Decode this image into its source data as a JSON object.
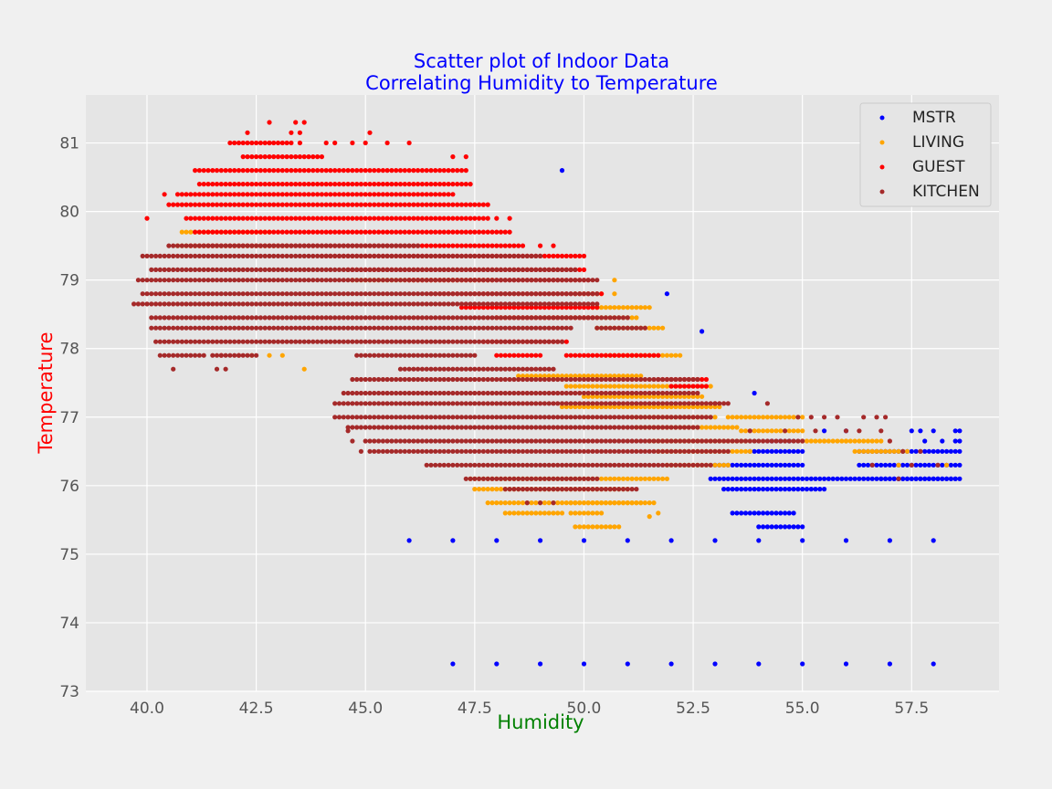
{
  "chart_data": {
    "type": "scatter",
    "title_line1": "Scatter plot of Indoor Data",
    "title_line2": "Correlating Humidity to Temperature",
    "xlabel": "Humidity",
    "ylabel": "Temperature",
    "xlim": [
      38.6,
      59.5
    ],
    "ylim": [
      73.0,
      81.7
    ],
    "x_ticks": [
      "40.0",
      "42.5",
      "45.0",
      "47.5",
      "50.0",
      "52.5",
      "55.0",
      "57.5"
    ],
    "y_ticks": [
      "73",
      "74",
      "75",
      "76",
      "77",
      "78",
      "79",
      "80",
      "81"
    ],
    "grid": true,
    "legend_position": "top-right",
    "colors": {
      "background": "#f0f0f0",
      "plot_area": "#e5e5e5",
      "grid": "#ffffff",
      "title": "#0000ff",
      "xlabel": "#008000",
      "ylabel": "#ff0000"
    },
    "series": [
      {
        "name": "MSTR",
        "color": "#0000ff",
        "bands": [
          [
            52.9,
            58.6,
            76.1
          ],
          [
            53.2,
            55.5,
            75.95
          ],
          [
            53.4,
            54.8,
            75.6
          ],
          [
            54.0,
            55.0,
            75.4
          ],
          [
            53.0,
            55.0,
            76.3
          ],
          [
            53.8,
            55.0,
            76.5
          ],
          [
            56.3,
            58.6,
            76.3
          ],
          [
            56.3,
            58.6,
            76.5
          ],
          [
            56.8,
            58.5,
            76.1
          ]
        ],
        "points": [
          [
            46.0,
            75.2
          ],
          [
            47.0,
            75.2
          ],
          [
            48.0,
            75.2
          ],
          [
            49.0,
            75.2
          ],
          [
            50.0,
            75.2
          ],
          [
            51.0,
            75.2
          ],
          [
            52.0,
            75.2
          ],
          [
            53.0,
            75.2
          ],
          [
            54.0,
            75.2
          ],
          [
            55.0,
            75.2
          ],
          [
            56.0,
            75.2
          ],
          [
            57.0,
            75.2
          ],
          [
            58.0,
            75.2
          ],
          [
            47.0,
            73.4
          ],
          [
            48.0,
            73.4
          ],
          [
            49.0,
            73.4
          ],
          [
            50.0,
            73.4
          ],
          [
            51.0,
            73.4
          ],
          [
            52.0,
            73.4
          ],
          [
            53.0,
            73.4
          ],
          [
            54.0,
            73.4
          ],
          [
            55.0,
            73.4
          ],
          [
            56.0,
            73.4
          ],
          [
            57.0,
            73.4
          ],
          [
            58.0,
            73.4
          ],
          [
            49.5,
            80.6
          ],
          [
            51.9,
            78.8
          ],
          [
            52.7,
            78.25
          ],
          [
            53.9,
            77.35
          ],
          [
            57.5,
            76.8
          ],
          [
            57.7,
            76.8
          ],
          [
            58.0,
            76.8
          ],
          [
            58.5,
            76.8
          ],
          [
            58.6,
            76.8
          ],
          [
            54.3,
            76.65
          ],
          [
            54.5,
            76.65
          ],
          [
            54.7,
            76.65
          ],
          [
            57.8,
            76.65
          ],
          [
            58.2,
            76.65
          ],
          [
            58.5,
            76.65
          ],
          [
            58.6,
            76.65
          ],
          [
            55.5,
            76.8
          ],
          [
            56.0,
            76.8
          ]
        ]
      },
      {
        "name": "LIVING",
        "color": "#ffa500",
        "bands": [
          [
            40.7,
            43.2,
            79.5
          ],
          [
            40.8,
            42.8,
            79.7
          ],
          [
            44.7,
            47.9,
            79.0
          ],
          [
            48.0,
            51.2,
            78.45
          ],
          [
            50.3,
            51.8,
            78.3
          ],
          [
            50.2,
            51.5,
            78.6
          ],
          [
            49.8,
            50.4,
            78.8
          ],
          [
            50.5,
            52.2,
            77.9
          ],
          [
            48.5,
            51.3,
            77.6
          ],
          [
            49.6,
            52.9,
            77.45
          ],
          [
            50.0,
            52.7,
            77.3
          ],
          [
            49.5,
            53.1,
            77.15
          ],
          [
            51.1,
            53.0,
            77.0
          ],
          [
            51.2,
            53.5,
            76.85
          ],
          [
            51.5,
            53.7,
            76.65
          ],
          [
            51.7,
            53.8,
            76.5
          ],
          [
            51.9,
            53.3,
            76.3
          ],
          [
            47.4,
            51.9,
            76.1
          ],
          [
            47.5,
            51.0,
            75.95
          ],
          [
            47.8,
            51.3,
            75.75
          ],
          [
            48.2,
            49.5,
            75.6
          ],
          [
            49.7,
            51.6,
            75.75
          ],
          [
            49.7,
            50.4,
            75.6
          ],
          [
            49.8,
            50.8,
            75.4
          ],
          [
            53.3,
            55.0,
            77.0
          ],
          [
            53.6,
            55.0,
            76.8
          ],
          [
            55.0,
            56.8,
            76.65
          ],
          [
            56.2,
            57.4,
            76.5
          ]
        ],
        "points": [
          [
            42.4,
            77.9
          ],
          [
            42.8,
            77.9
          ],
          [
            43.6,
            77.7
          ],
          [
            43.1,
            77.9
          ],
          [
            51.7,
            75.6
          ],
          [
            51.5,
            75.55
          ],
          [
            55.5,
            76.65
          ],
          [
            56.0,
            76.65
          ],
          [
            56.6,
            76.5
          ],
          [
            57.2,
            76.3
          ],
          [
            58.3,
            76.3
          ],
          [
            50.7,
            78.8
          ],
          [
            50.7,
            79.0
          ]
        ]
      },
      {
        "name": "GUEST",
        "color": "#ff0000",
        "bands": [
          [
            41.9,
            43.2,
            81.0
          ],
          [
            42.2,
            44.0,
            80.8
          ],
          [
            41.1,
            47.3,
            80.6
          ],
          [
            41.2,
            47.4,
            80.4
          ],
          [
            40.7,
            47.0,
            80.25
          ],
          [
            40.5,
            47.8,
            80.1
          ],
          [
            40.9,
            47.8,
            79.9
          ],
          [
            41.1,
            48.3,
            79.7
          ],
          [
            41.0,
            48.6,
            79.5
          ],
          [
            44.0,
            50.0,
            79.35
          ],
          [
            44.6,
            50.0,
            79.15
          ],
          [
            46.0,
            50.1,
            79.0
          ],
          [
            46.5,
            50.4,
            78.8
          ],
          [
            47.2,
            50.3,
            78.6
          ],
          [
            48.0,
            50.2,
            78.45
          ],
          [
            49.6,
            51.7,
            77.9
          ],
          [
            51.7,
            52.8,
            77.55
          ],
          [
            52.0,
            52.8,
            77.45
          ],
          [
            47.7,
            49.6,
            78.1
          ],
          [
            48.0,
            49.0,
            77.9
          ]
        ],
        "points": [
          [
            40.0,
            79.9
          ],
          [
            40.4,
            80.25
          ],
          [
            42.3,
            81.15
          ],
          [
            42.8,
            81.3
          ],
          [
            43.4,
            81.3
          ],
          [
            43.6,
            81.3
          ],
          [
            43.3,
            81.15
          ],
          [
            43.5,
            81.15
          ],
          [
            45.1,
            81.15
          ],
          [
            45.0,
            81.0
          ],
          [
            45.5,
            81.0
          ],
          [
            46.0,
            81.0
          ],
          [
            44.7,
            81.0
          ],
          [
            44.3,
            81.0
          ],
          [
            44.1,
            81.0
          ],
          [
            47.0,
            80.8
          ],
          [
            43.3,
            81.0
          ],
          [
            43.5,
            81.0
          ],
          [
            42.8,
            81.0
          ],
          [
            47.3,
            80.8
          ],
          [
            48.0,
            79.9
          ],
          [
            48.3,
            79.9
          ],
          [
            49.0,
            79.5
          ],
          [
            49.3,
            79.5
          ],
          [
            41.7,
            77.9
          ],
          [
            42.1,
            77.9
          ]
        ]
      },
      {
        "name": "KITCHEN",
        "color": "#a52a2a",
        "bands": [
          [
            40.1,
            49.8,
            79.15
          ],
          [
            39.9,
            49.0,
            79.35
          ],
          [
            40.5,
            46.2,
            79.5
          ],
          [
            39.8,
            50.3,
            79.0
          ],
          [
            39.9,
            50.3,
            78.8
          ],
          [
            39.7,
            50.3,
            78.65
          ],
          [
            40.1,
            51.0,
            78.45
          ],
          [
            40.1,
            49.7,
            78.3
          ],
          [
            40.2,
            49.5,
            78.1
          ],
          [
            40.3,
            41.3,
            77.9
          ],
          [
            41.5,
            42.5,
            77.9
          ],
          [
            44.8,
            47.5,
            77.9
          ],
          [
            45.8,
            49.3,
            77.7
          ],
          [
            44.7,
            52.6,
            77.55
          ],
          [
            44.5,
            52.6,
            77.35
          ],
          [
            44.3,
            53.3,
            77.2
          ],
          [
            44.3,
            52.9,
            77.0
          ],
          [
            44.6,
            52.6,
            76.85
          ],
          [
            45.0,
            55.0,
            76.65
          ],
          [
            45.1,
            53.3,
            76.5
          ],
          [
            46.4,
            52.9,
            76.3
          ],
          [
            47.3,
            50.3,
            76.1
          ],
          [
            48.2,
            51.2,
            75.95
          ],
          [
            50.3,
            51.4,
            78.3
          ]
        ],
        "points": [
          [
            41.6,
            77.7
          ],
          [
            41.8,
            77.7
          ],
          [
            40.6,
            77.7
          ],
          [
            44.9,
            76.5
          ],
          [
            44.7,
            76.65
          ],
          [
            44.6,
            76.8
          ],
          [
            48.7,
            75.75
          ],
          [
            49.0,
            75.75
          ],
          [
            49.3,
            75.75
          ],
          [
            53.8,
            76.8
          ],
          [
            54.2,
            77.2
          ],
          [
            53.0,
            77.2
          ],
          [
            55.3,
            76.8
          ],
          [
            55.5,
            77.0
          ],
          [
            56.0,
            76.8
          ],
          [
            56.4,
            77.0
          ],
          [
            56.8,
            76.8
          ],
          [
            57.0,
            76.65
          ],
          [
            57.3,
            76.5
          ],
          [
            57.5,
            76.3
          ],
          [
            57.7,
            76.5
          ],
          [
            57.2,
            76.1
          ],
          [
            56.6,
            76.3
          ],
          [
            55.8,
            77.0
          ],
          [
            56.3,
            76.8
          ],
          [
            56.7,
            77.0
          ],
          [
            56.9,
            77.0
          ],
          [
            54.6,
            76.8
          ],
          [
            54.9,
            77.0
          ],
          [
            55.2,
            77.0
          ],
          [
            58.1,
            76.3
          ]
        ]
      }
    ]
  }
}
